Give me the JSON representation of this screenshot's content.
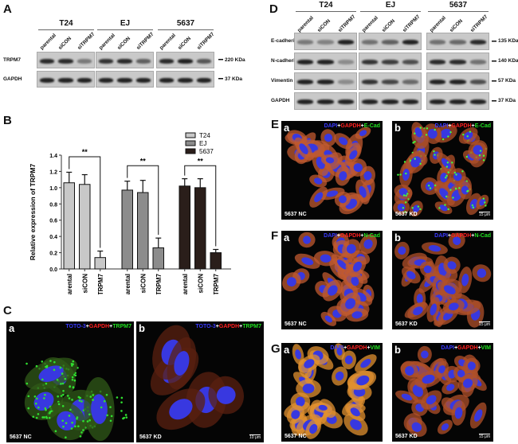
{
  "panelA": {
    "label": "A",
    "groups": [
      "T24",
      "EJ",
      "5637"
    ],
    "lanes": [
      "parental",
      "siCON",
      "siTRPM7"
    ],
    "rows": [
      {
        "name": "TRPM7",
        "kda": "220 KDa",
        "intensity": [
          [
            0.9,
            0.9,
            0.45
          ],
          [
            0.85,
            0.9,
            0.6
          ],
          [
            0.9,
            0.95,
            0.65
          ]
        ]
      },
      {
        "name": "GAPDH",
        "kda": "37 KDa",
        "intensity": [
          [
            0.95,
            0.95,
            0.95
          ],
          [
            0.95,
            0.95,
            0.95
          ],
          [
            0.95,
            0.95,
            0.95
          ]
        ]
      }
    ]
  },
  "panelB": {
    "label": "B"
  },
  "chart_data": {
    "type": "bar",
    "ylabel": "Relative expression of TRPM7",
    "ylim": [
      0,
      1.4
    ],
    "yticks": [
      "0.0",
      "0.2",
      "0.4",
      "0.6",
      "0.8",
      "1.0",
      "1.2",
      "1.4"
    ],
    "categories": [
      "parental",
      "siCON",
      "siTRPM7"
    ],
    "legend_placement": "top-right",
    "series": [
      {
        "name": "T24",
        "color": "#c8c8c8",
        "values": [
          1.06,
          1.04,
          0.14
        ],
        "errors": [
          0.13,
          0.12,
          0.08
        ],
        "bracket": 1.38
      },
      {
        "name": "EJ",
        "color": "#8c8c8c",
        "values": [
          0.97,
          0.94,
          0.26
        ],
        "errors": [
          0.11,
          0.15,
          0.12
        ],
        "bracket": 1.27
      },
      {
        "name": "5637",
        "color": "#2a1e1a",
        "values": [
          1.02,
          1.0,
          0.2
        ],
        "errors": [
          0.09,
          0.11,
          0.04
        ],
        "bracket": 1.27
      }
    ],
    "significance": "**"
  },
  "panelC": {
    "label": "C",
    "stain": [
      "TOTO-3",
      "+",
      "GAPDH",
      "+",
      "TRPM7"
    ],
    "panels": [
      {
        "sub": "a",
        "cond": "5637 NC"
      },
      {
        "sub": "b",
        "cond": "5637 KD",
        "scale": "10 μm"
      }
    ]
  },
  "panelD": {
    "label": "D",
    "groups": [
      "T24",
      "EJ",
      "5637"
    ],
    "lanes": [
      "parental",
      "siCON",
      "siTRPM7"
    ],
    "rows": [
      {
        "name": "E-cadherin",
        "kda": "135 KDa",
        "intensity": [
          [
            0.45,
            0.4,
            0.95
          ],
          [
            0.5,
            0.6,
            0.95
          ],
          [
            0.5,
            0.55,
            0.9
          ]
        ]
      },
      {
        "name": "N-cadherin",
        "kda": "140 KDa",
        "intensity": [
          [
            0.95,
            0.95,
            0.35
          ],
          [
            0.85,
            0.8,
            0.7
          ],
          [
            0.9,
            0.9,
            0.5
          ]
        ]
      },
      {
        "name": "Vimentin",
        "kda": "57 KDa",
        "intensity": [
          [
            0.95,
            0.95,
            0.35
          ],
          [
            0.85,
            0.75,
            0.55
          ],
          [
            0.95,
            0.95,
            0.7
          ]
        ]
      },
      {
        "name": "GAPDH",
        "kda": "37 KDa",
        "intensity": [
          [
            0.95,
            0.95,
            0.95
          ],
          [
            0.95,
            0.95,
            0.95
          ],
          [
            0.95,
            0.95,
            0.95
          ]
        ]
      }
    ]
  },
  "panelE": {
    "label": "E",
    "stain": [
      "DAPI",
      "+",
      "GAPDH",
      "+",
      "E-Cad"
    ],
    "panels": [
      {
        "sub": "a",
        "cond": "5637 NC"
      },
      {
        "sub": "b",
        "cond": "5637 KD",
        "scale": "15 μm"
      }
    ]
  },
  "panelF": {
    "label": "F",
    "stain": [
      "DAPI",
      "+",
      "GAPDH",
      "+",
      "N-Cad"
    ],
    "panels": [
      {
        "sub": "a",
        "cond": "5637 NC"
      },
      {
        "sub": "b",
        "cond": "5637 KD",
        "scale": "15 μm"
      }
    ]
  },
  "panelG": {
    "label": "G",
    "stain": [
      "DAPI",
      "+",
      "GAPDH",
      "+",
      "VIM"
    ],
    "panels": [
      {
        "sub": "a",
        "cond": "5637 NC"
      },
      {
        "sub": "b",
        "cond": "5637 KD",
        "scale": "15 μm"
      }
    ]
  }
}
